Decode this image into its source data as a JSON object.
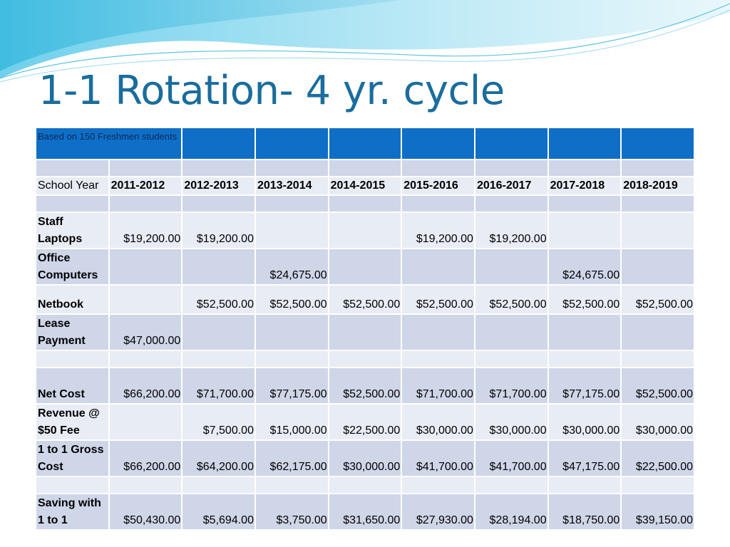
{
  "title": "1-1 Rotation- 4 yr. cycle",
  "table": {
    "note": "Based on 150 Freshmen students",
    "school_year_label": "School Year",
    "years": [
      "2011-2012",
      "2012-2013",
      "2013-2014",
      "2014-2015",
      "2015-2016",
      "2016-2017",
      "2017-2018",
      "2018-2019"
    ],
    "rows": [
      {
        "label": "Staff Laptops",
        "values": [
          "$19,200.00",
          "$19,200.00",
          "",
          "",
          "$19,200.00",
          "$19,200.00",
          "",
          ""
        ]
      },
      {
        "label": "Office Computers",
        "values": [
          "",
          "",
          "$24,675.00",
          "",
          "",
          "",
          "$24,675.00",
          ""
        ]
      },
      {
        "label": "Netbook",
        "values": [
          "",
          "$52,500.00",
          "$52,500.00",
          "$52,500.00",
          "$52,500.00",
          "$52,500.00",
          "$52,500.00",
          "$52,500.00"
        ]
      },
      {
        "label": "Lease Payment",
        "values": [
          "$47,000.00",
          "",
          "",
          "",
          "",
          "",
          "",
          ""
        ]
      },
      {
        "label": "Net Cost",
        "values": [
          "$66,200.00",
          "$71,700.00",
          "$77,175.00",
          "$52,500.00",
          "$71,700.00",
          "$71,700.00",
          "$77,175.00",
          "$52,500.00"
        ]
      },
      {
        "label": "Revenue @ $50 Fee",
        "values": [
          "",
          "$7,500.00",
          "$15,000.00",
          "$22,500.00",
          "$30,000.00",
          "$30,000.00",
          "$30,000.00",
          "$30,000.00"
        ]
      },
      {
        "label": "1 to 1 Gross Cost",
        "values": [
          "$66,200.00",
          "$64,200.00",
          "$62,175.00",
          "$30,000.00",
          "$41,700.00",
          "$41,700.00",
          "$47,175.00",
          "$22,500.00"
        ]
      },
      {
        "label": "Saving with 1 to 1",
        "values": [
          "$50,430.00",
          "$5,694.00",
          "$3,750.00",
          "$31,650.00",
          "$27,930.00",
          "$28,194.00",
          "$18,750.00",
          "$39,150.00"
        ]
      }
    ]
  },
  "colors": {
    "title": "#1a6d9c",
    "header_band": "#0f6fc6",
    "row_dark": "#cfd6e8",
    "row_light": "#e8ecf4"
  }
}
